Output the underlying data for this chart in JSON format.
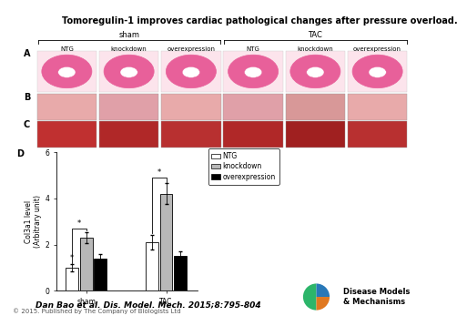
{
  "title": "Tomoregulin-1 improves cardiac pathological changes after pressure overload.",
  "title_fontsize": 7.0,
  "citation": "Dan Bao et al. Dis. Model. Mech. 2015;8:795-804",
  "citation_fontsize": 6.5,
  "copyright": "© 2015. Published by The Company of Biologists Ltd",
  "copyright_fontsize": 5.0,
  "sham_label": "sham",
  "tac_label": "TAC",
  "col_labels": [
    "NTG",
    "knockdown",
    "overexpression",
    "NTG",
    "knockdown",
    "overexpression"
  ],
  "col_label_fontsize": 5.0,
  "panel_labels": [
    "A",
    "B",
    "D"
  ],
  "bar_groups": [
    "sham",
    "TAC"
  ],
  "bar_values_sham": [
    1.0,
    2.3,
    1.4
  ],
  "bar_values_tac": [
    2.1,
    4.2,
    1.5
  ],
  "bar_errors_sham": [
    0.15,
    0.25,
    0.2
  ],
  "bar_errors_tac": [
    0.3,
    0.45,
    0.2
  ],
  "bar_colors": [
    "white",
    "#b8b8b8",
    "black"
  ],
  "bar_edgecolor": "black",
  "ylabel": "Col3a1 level\n(Arbitrary unit)",
  "ylabel_fontsize": 5.5,
  "ylim": [
    0,
    6
  ],
  "yticks": [
    0,
    2,
    4,
    6
  ],
  "legend_labels": [
    "NTG",
    "knockdown",
    "overexpression"
  ],
  "legend_fontsize": 5.5,
  "tick_fontsize": 5.5,
  "panel_A_bg": "#fce4ec",
  "panel_B_colors": [
    "#e8aaaa",
    "#e0a0a8",
    "#e8aaaa",
    "#e0a0a8",
    "#d89898",
    "#e8aaaa"
  ],
  "panel_C_colors": [
    "#c03030",
    "#b02828",
    "#b83030",
    "#b02828",
    "#a02020",
    "#b83030"
  ],
  "heart_color": "#e8609a",
  "heart_inner_color": "white",
  "logo_green": "#2cb56a",
  "logo_orange": "#e07820",
  "logo_blue": "#2878b8",
  "logo_text": "Disease Models\n& Mechanisms",
  "logo_fontsize": 6.0
}
